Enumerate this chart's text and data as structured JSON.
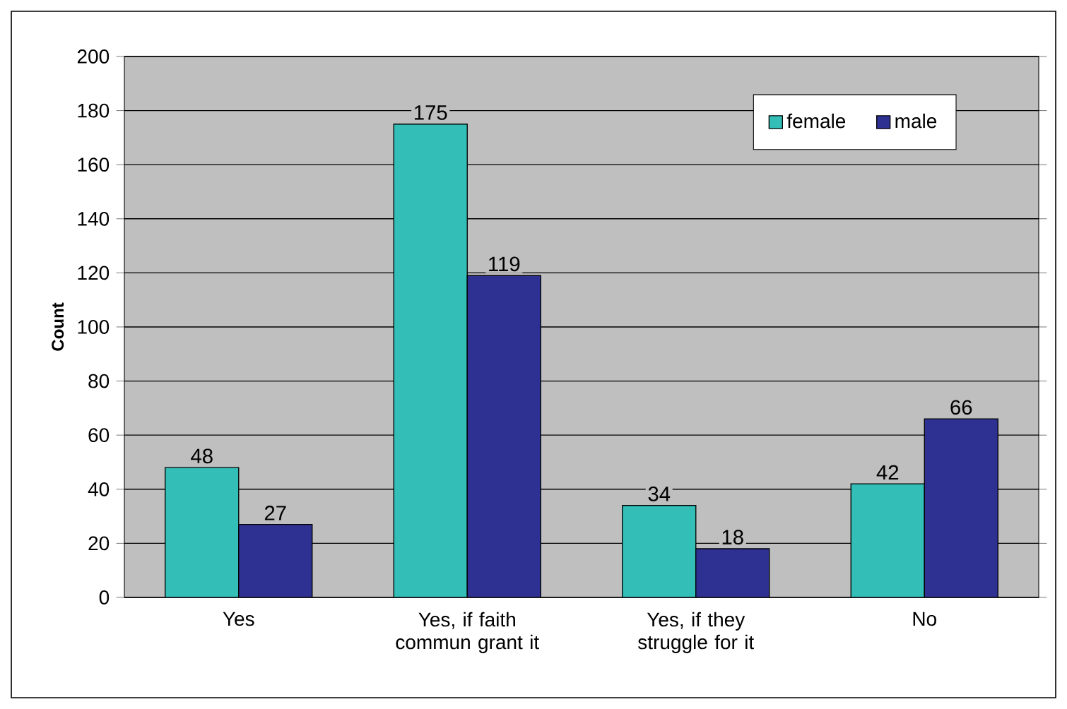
{
  "chart_data": {
    "type": "bar",
    "ylabel": "Count",
    "categories": [
      "Yes",
      "Yes, if faith commun grant it",
      "Yes, if they struggle for it",
      "No"
    ],
    "series": [
      {
        "name": "female",
        "color": "#33bfb8",
        "values": [
          48,
          175,
          34,
          42
        ]
      },
      {
        "name": "male",
        "color": "#2e3192",
        "values": [
          27,
          119,
          18,
          66
        ]
      }
    ],
    "ylim": [
      0,
      200
    ],
    "yticks": [
      0,
      20,
      40,
      60,
      80,
      100,
      120,
      140,
      160,
      180,
      200
    ],
    "grid": "y",
    "legend": "top right",
    "data_labels": true
  }
}
